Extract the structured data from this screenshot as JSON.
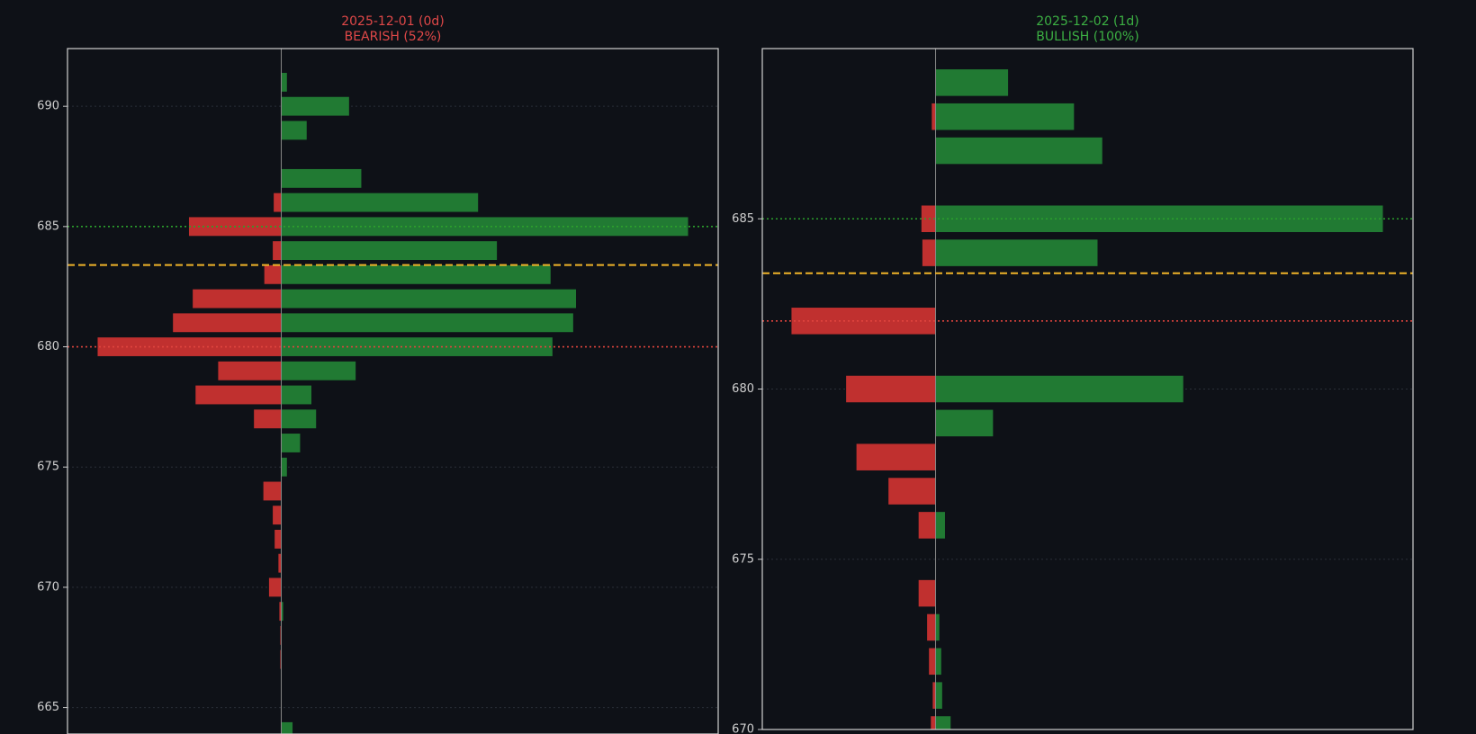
{
  "chart_data": [
    {
      "type": "bar",
      "orientation": "horizontal",
      "title": "2025-12-01 (0d)",
      "subtitle": "BEARISH (52%)",
      "title_color": "#e04848",
      "categories": [
        691,
        690,
        689,
        688,
        687,
        686,
        685,
        684,
        683,
        682,
        681,
        680,
        679,
        678,
        677,
        676,
        675,
        674,
        673,
        672,
        671,
        670,
        669,
        668,
        667,
        666,
        665,
        664
      ],
      "series": [
        {
          "color": "#217a33",
          "values": [
            6,
            72,
            27,
            0,
            85,
            209,
            432,
            229,
            286,
            313,
            310,
            288,
            79,
            32,
            37,
            20,
            6,
            0,
            0,
            0,
            0,
            0,
            2,
            0,
            0,
            0,
            0,
            12
          ]
        },
        {
          "color": "#c0302f",
          "values": [
            0,
            0,
            0,
            0,
            0,
            -8,
            -98,
            -9,
            -18,
            -94,
            -115,
            -195,
            -67,
            -91,
            -29,
            0,
            0,
            -19,
            -9,
            -7,
            -3,
            -13,
            -2,
            -1,
            -1,
            0,
            0,
            0
          ]
        }
      ],
      "xlim": [
        -227,
        464
      ],
      "ylim": [
        663.9,
        692.4
      ],
      "yticks": [
        665,
        670,
        675,
        680,
        685,
        690
      ],
      "grid": true,
      "hlines": [
        {
          "value": 685,
          "color": "#2ca02c",
          "style": "dotted"
        },
        {
          "value": 683.4,
          "color": "#f0b429",
          "style": "dashed"
        },
        {
          "value": 680,
          "color": "#e0443e",
          "style": "dotted"
        }
      ]
    },
    {
      "type": "bar",
      "orientation": "horizontal",
      "title": "2025-12-02 (1d)",
      "subtitle": "BULLISH (100%)",
      "title_color": "#3cb043",
      "categories": [
        689,
        688,
        687,
        686,
        685,
        684,
        683,
        682,
        681,
        680,
        679,
        678,
        677,
        676,
        675,
        674,
        673,
        672,
        671,
        670
      ],
      "series": [
        {
          "color": "#217a33",
          "values": [
            77,
            147,
            177,
            0,
            475,
            172,
            0,
            0,
            0,
            263,
            61,
            0,
            0,
            10,
            0,
            0,
            4,
            6,
            7,
            16
          ]
        },
        {
          "color": "#c0302f",
          "values": [
            0,
            -4,
            0,
            0,
            -15,
            -14,
            0,
            -153,
            0,
            -95,
            0,
            -84,
            -50,
            -18,
            0,
            -18,
            -9,
            -7,
            -3,
            -5
          ]
        }
      ],
      "xlim": [
        -184,
        507
      ],
      "ylim": [
        670,
        690
      ],
      "yticks": [
        670,
        675,
        680,
        685
      ],
      "grid": true,
      "hlines": [
        {
          "value": 685,
          "color": "#2ca02c",
          "style": "dotted"
        },
        {
          "value": 683.4,
          "color": "#f0b429",
          "style": "dashed"
        },
        {
          "value": 682,
          "color": "#e0443e",
          "style": "dotted"
        }
      ]
    }
  ]
}
